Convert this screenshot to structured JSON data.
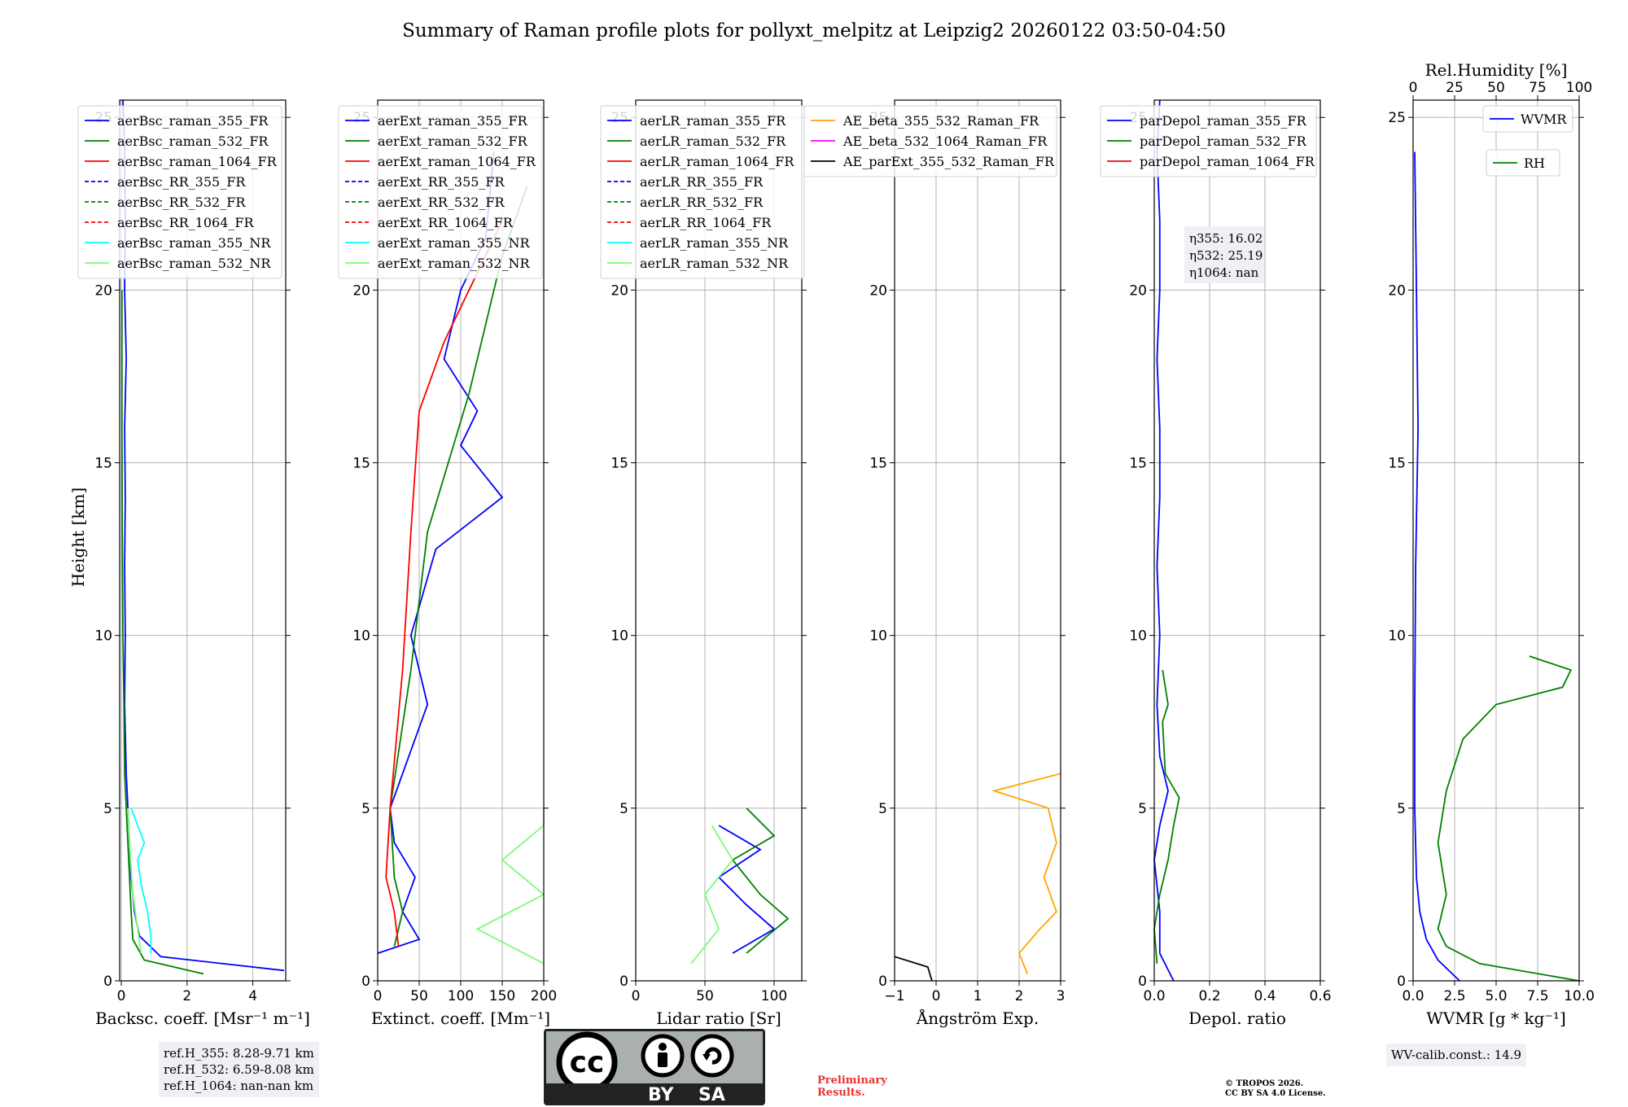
{
  "title": "Summary of Raman profile plots for pollyxt_melpitz at Leipzig2 20260122 03:50-04:50",
  "y_axis": {
    "label": "Height [km]",
    "range": [
      0,
      25.5
    ],
    "ticks": [
      0,
      5,
      10,
      15,
      20,
      25
    ]
  },
  "chart_data": [
    {
      "type": "line",
      "id": "bsc",
      "xlabel": "Backsc. coeff. [Msr⁻¹ m⁻¹]",
      "xlim": [
        -0.05,
        5
      ],
      "xticks": [
        0,
        2,
        4
      ],
      "legend": [
        "aerBsc_raman_355_FR",
        "aerBsc_raman_532_FR",
        "aerBsc_raman_1064_FR",
        "aerBsc_RR_355_FR",
        "aerBsc_RR_532_FR",
        "aerBsc_RR_1064_FR",
        "aerBsc_raman_355_NR",
        "aerBsc_raman_532_NR"
      ],
      "series": [
        {
          "name": "aerBsc_raman_355_FR",
          "color": "#0000ff",
          "points": [
            [
              4.95,
              0.3
            ],
            [
              1.2,
              0.7
            ],
            [
              0.55,
              1.3
            ],
            [
              0.4,
              2.0
            ],
            [
              0.3,
              3.0
            ],
            [
              0.25,
              4.0
            ],
            [
              0.2,
              5.0
            ],
            [
              0.15,
              6.0
            ],
            [
              0.1,
              8.0
            ],
            [
              0.12,
              10.0
            ],
            [
              0.1,
              12.0
            ],
            [
              0.12,
              14.0
            ],
            [
              0.1,
              16.0
            ],
            [
              0.15,
              18.0
            ],
            [
              0.1,
              20.0
            ],
            [
              0.12,
              22.0
            ],
            [
              0.1,
              24.0
            ],
            [
              0.05,
              25.5
            ]
          ]
        },
        {
          "name": "aerBsc_raman_532_FR",
          "color": "#008000",
          "points": [
            [
              2.5,
              0.2
            ],
            [
              0.7,
              0.6
            ],
            [
              0.35,
              1.2
            ],
            [
              0.3,
              2.0
            ],
            [
              0.25,
              3.0
            ],
            [
              0.2,
              4.0
            ],
            [
              0.15,
              5.0
            ],
            [
              0.1,
              6.0
            ],
            [
              0.08,
              8.0
            ],
            [
              0.05,
              10.0
            ],
            [
              0.03,
              13.0
            ],
            [
              0.02,
              16.0
            ],
            [
              0.02,
              20.0
            ]
          ]
        },
        {
          "name": "aerBsc_raman_355_NR",
          "color": "#00ffff",
          "points": [
            [
              0.9,
              0.8
            ],
            [
              0.9,
              1.3
            ],
            [
              0.8,
              2.0
            ],
            [
              0.6,
              2.8
            ],
            [
              0.5,
              3.5
            ],
            [
              0.7,
              4.0
            ],
            [
              0.5,
              4.5
            ],
            [
              0.3,
              5.0
            ]
          ]
        },
        {
          "name": "aerBsc_raman_532_NR",
          "color": "#7cfc7c",
          "points": [
            [
              0.6,
              0.8
            ],
            [
              0.5,
              1.5
            ],
            [
              0.35,
              2.5
            ],
            [
              0.25,
              4.0
            ],
            [
              0.2,
              5.0
            ]
          ]
        }
      ]
    },
    {
      "type": "line",
      "id": "ext",
      "xlabel": "Extinct. coeff. [Mm⁻¹]",
      "xlim": [
        0,
        200
      ],
      "xticks": [
        0,
        50,
        100,
        150,
        200
      ],
      "legend": [
        "aerExt_raman_355_FR",
        "aerExt_raman_532_FR",
        "aerExt_raman_1064_FR",
        "aerExt_RR_355_FR",
        "aerExt_RR_532_FR",
        "aerExt_RR_1064_FR",
        "aerExt_raman_355_NR",
        "aerExt_raman_532_NR"
      ],
      "series": [
        {
          "name": "aerExt_raman_355_FR",
          "color": "#0000ff",
          "points": [
            [
              0,
              0.8
            ],
            [
              50,
              1.2
            ],
            [
              30,
              2.0
            ],
            [
              45,
              3.0
            ],
            [
              20,
              4.0
            ],
            [
              15,
              5.0
            ],
            [
              30,
              6.0
            ],
            [
              60,
              8.0
            ],
            [
              40,
              10.0
            ],
            [
              70,
              12.5
            ],
            [
              150,
              14.0
            ],
            [
              100,
              15.5
            ],
            [
              120,
              16.5
            ],
            [
              80,
              18.0
            ],
            [
              100,
              20.0
            ],
            [
              130,
              21.5
            ],
            [
              140,
              24.0
            ]
          ]
        },
        {
          "name": "aerExt_raman_532_FR",
          "color": "#008000",
          "points": [
            [
              20,
              1.0
            ],
            [
              30,
              2.0
            ],
            [
              20,
              3.0
            ],
            [
              15,
              5.0
            ],
            [
              40,
              9.0
            ],
            [
              60,
              13.0
            ],
            [
              110,
              17.0
            ],
            [
              130,
              19.0
            ],
            [
              150,
              21.0
            ],
            [
              180,
              23.0
            ]
          ]
        },
        {
          "name": "aerExt_raman_1064_FR",
          "color": "#ff0000",
          "points": [
            [
              25,
              1.0
            ],
            [
              20,
              2.0
            ],
            [
              10,
              3.0
            ],
            [
              15,
              5.0
            ],
            [
              30,
              9.0
            ],
            [
              40,
              13.0
            ],
            [
              50,
              16.5
            ],
            [
              80,
              18.5
            ],
            [
              120,
              20.5
            ],
            [
              150,
              22.0
            ]
          ]
        },
        {
          "name": "aerExt_raman_532_NR",
          "color": "#7cfc7c",
          "points": [
            [
              200,
              0.5
            ],
            [
              120,
              1.5
            ],
            [
              200,
              2.5
            ],
            [
              150,
              3.5
            ],
            [
              200,
              4.5
            ],
            [
              200,
              5.0
            ]
          ]
        }
      ]
    },
    {
      "type": "line",
      "id": "lr",
      "xlabel": "Lidar ratio [Sr]",
      "xlim": [
        0,
        120
      ],
      "xticks": [
        0,
        50,
        100
      ],
      "legend": [
        "aerLR_raman_355_FR",
        "aerLR_raman_532_FR",
        "aerLR_raman_1064_FR",
        "aerLR_RR_355_FR",
        "aerLR_RR_532_FR",
        "aerLR_RR_1064_FR",
        "aerLR_raman_355_NR",
        "aerLR_raman_532_NR"
      ],
      "series": [
        {
          "name": "aerLR_raman_355_FR",
          "color": "#0000ff",
          "points": [
            [
              70,
              0.8
            ],
            [
              100,
              1.5
            ],
            [
              80,
              2.2
            ],
            [
              60,
              3.0
            ],
            [
              90,
              3.8
            ],
            [
              60,
              4.5
            ]
          ]
        },
        {
          "name": "aerLR_raman_532_FR",
          "color": "#008000",
          "points": [
            [
              80,
              0.8
            ],
            [
              110,
              1.8
            ],
            [
              90,
              2.5
            ],
            [
              70,
              3.5
            ],
            [
              100,
              4.2
            ],
            [
              80,
              5.0
            ]
          ]
        },
        {
          "name": "aerLR_raman_532_NR",
          "color": "#7cfc7c",
          "points": [
            [
              40,
              0.5
            ],
            [
              60,
              1.5
            ],
            [
              50,
              2.5
            ],
            [
              70,
              3.5
            ],
            [
              55,
              4.5
            ]
          ]
        }
      ]
    },
    {
      "type": "line",
      "id": "ae",
      "xlabel": "Ångström Exp.",
      "xlim": [
        -1,
        3
      ],
      "xticks": [
        -1,
        0,
        1,
        2,
        3
      ],
      "legend": [
        "AE_beta_355_532_Raman_FR",
        "AE_beta_532_1064_Raman_FR",
        "AE_parExt_355_532_Raman_FR"
      ],
      "series": [
        {
          "name": "AE_beta_355_532_Raman_FR",
          "color": "#ffa500",
          "points": [
            [
              2.2,
              0.2
            ],
            [
              2.0,
              0.8
            ],
            [
              2.5,
              1.5
            ],
            [
              2.9,
              2.0
            ],
            [
              2.6,
              3.0
            ],
            [
              2.9,
              4.0
            ],
            [
              2.7,
              5.0
            ],
            [
              1.4,
              5.5
            ],
            [
              3.0,
              6.0
            ]
          ]
        },
        {
          "name": "AE_parExt_355_532_Raman_FR",
          "color": "#000000",
          "points": [
            [
              -1,
              0.7
            ],
            [
              -0.2,
              0.4
            ],
            [
              -0.1,
              0.0
            ]
          ]
        }
      ]
    },
    {
      "type": "line",
      "id": "depol",
      "xlabel": "Depol. ratio",
      "xlim": [
        0,
        0.6
      ],
      "xticks": [
        0.0,
        0.2,
        0.4,
        0.6
      ],
      "legend": [
        "parDepol_raman_355_FR",
        "parDepol_raman_532_FR",
        "parDepol_raman_1064_FR"
      ],
      "annotations": [
        "η355: 16.02",
        "η532: 25.19",
        "η1064: nan"
      ],
      "series": [
        {
          "name": "parDepol_raman_355_FR",
          "color": "#0000ff",
          "points": [
            [
              0.07,
              0.0
            ],
            [
              0.02,
              0.8
            ],
            [
              0.02,
              2.0
            ],
            [
              0.0,
              3.5
            ],
            [
              0.02,
              4.5
            ],
            [
              0.05,
              5.5
            ],
            [
              0.02,
              6.5
            ],
            [
              0.01,
              8.0
            ],
            [
              0.02,
              10.0
            ],
            [
              0.01,
              12.0
            ],
            [
              0.02,
              14.0
            ],
            [
              0.02,
              16.0
            ],
            [
              0.01,
              18.0
            ],
            [
              0.02,
              20.0
            ],
            [
              0.02,
              22.0
            ],
            [
              0.01,
              24.0
            ],
            [
              0.02,
              25.5
            ]
          ]
        },
        {
          "name": "parDepol_raman_532_FR",
          "color": "#008000",
          "points": [
            [
              0.01,
              0.5
            ],
            [
              0.0,
              1.5
            ],
            [
              0.02,
              2.5
            ],
            [
              0.05,
              3.5
            ],
            [
              0.07,
              4.5
            ],
            [
              0.09,
              5.3
            ],
            [
              0.04,
              6.0
            ],
            [
              0.03,
              7.5
            ],
            [
              0.05,
              8.0
            ],
            [
              0.03,
              9.0
            ]
          ]
        }
      ]
    },
    {
      "type": "line",
      "id": "wv",
      "xlabel": "WVMR [g * kg⁻¹]",
      "xlim": [
        0,
        10
      ],
      "xticks": [
        0.0,
        2.5,
        5.0,
        7.5,
        10.0
      ],
      "top_xlabel": "Rel.Humidity [%]",
      "top_xlim": [
        0,
        100
      ],
      "top_xticks": [
        0,
        25,
        50,
        75,
        100
      ],
      "legend": [
        "WVMR",
        "RH"
      ],
      "series": [
        {
          "name": "WVMR",
          "color": "#0000ff",
          "points": [
            [
              2.8,
              0.0
            ],
            [
              1.5,
              0.6
            ],
            [
              0.8,
              1.2
            ],
            [
              0.4,
              2.0
            ],
            [
              0.2,
              3.0
            ],
            [
              0.1,
              5.0
            ],
            [
              0.1,
              8.0
            ],
            [
              0.15,
              12.0
            ],
            [
              0.3,
              16.0
            ],
            [
              0.2,
              20.0
            ],
            [
              0.1,
              24.0
            ]
          ]
        },
        {
          "name": "RH",
          "color": "#008000",
          "points": [
            [
              100,
              0.0
            ],
            [
              40,
              0.5
            ],
            [
              20,
              1.0
            ],
            [
              15,
              1.5
            ],
            [
              20,
              2.5
            ],
            [
              15,
              4.0
            ],
            [
              20,
              5.5
            ],
            [
              30,
              7.0
            ],
            [
              50,
              8.0
            ],
            [
              90,
              8.5
            ],
            [
              95,
              9.0
            ],
            [
              70,
              9.4
            ]
          ]
        }
      ]
    }
  ],
  "ref_heights": [
    "ref.H_355: 8.28-9.71 km",
    "ref.H_532: 6.59-8.08 km",
    "ref.H_1064: nan-nan km"
  ],
  "wv_calib": "WV-calib.const.: 14.9",
  "license_badge": {
    "by": "BY",
    "sa": "SA",
    "cc": "cc"
  },
  "preliminary": [
    "Preliminary",
    "Results."
  ],
  "copyright": [
    "© TROPOS 2026.",
    "CC BY SA 4.0 License."
  ]
}
